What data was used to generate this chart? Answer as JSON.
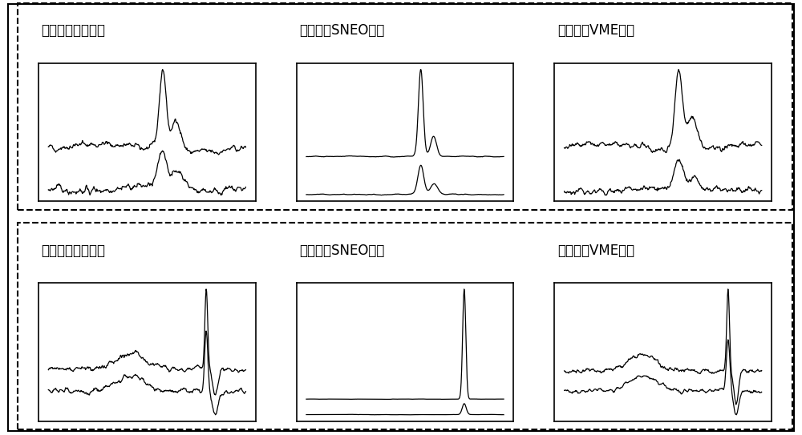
{
  "titles_row1": [
    "眨眼伪迹原始信号",
    "眨眼伪迹SNEO信号",
    "眨眼伪迹VME信号"
  ],
  "titles_row2": [
    "癫样放电原始信号",
    "癫样放电SNEO信号",
    "癫样放电VME信号"
  ],
  "bg_color": "#ffffff",
  "line_color": "#000000",
  "title_fontsize": 12,
  "fig_width": 10.0,
  "fig_height": 5.43
}
